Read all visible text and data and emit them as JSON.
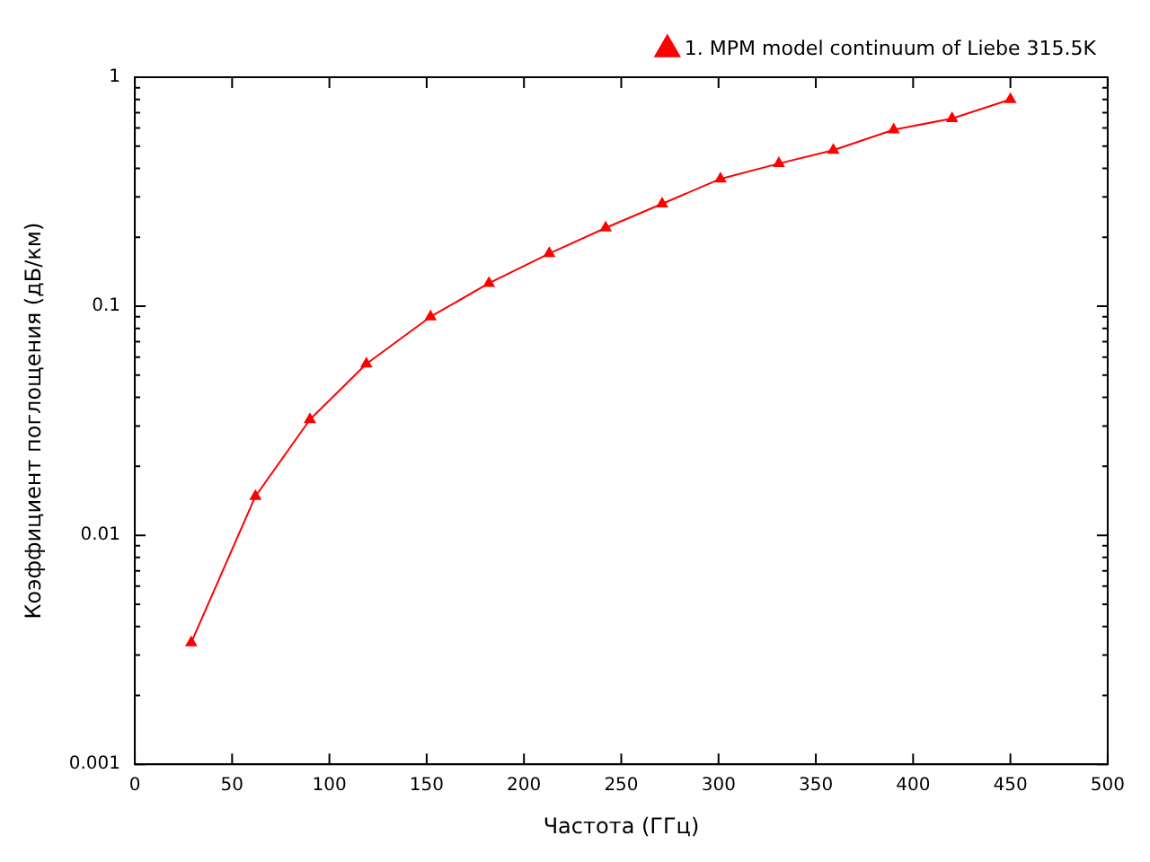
{
  "chart_data": {
    "type": "line",
    "xlabel": "Частота (ГГц)",
    "ylabel": "Коэффициент поглощения (дБ/км)",
    "x": [
      29,
      62,
      90,
      119,
      152,
      182,
      213,
      242,
      271,
      301,
      331,
      359,
      390,
      420,
      450
    ],
    "series": [
      {
        "name": "1. MPM model continuum of Liebe 315.5K",
        "color": "#ff0000",
        "values": [
          0.0034,
          0.0148,
          0.032,
          0.056,
          0.09,
          0.126,
          0.17,
          0.22,
          0.28,
          0.36,
          0.42,
          0.48,
          0.59,
          0.66,
          0.8
        ]
      }
    ],
    "xlim": [
      0,
      500
    ],
    "xticks": [
      0,
      50,
      100,
      150,
      200,
      250,
      300,
      350,
      400,
      450,
      500
    ],
    "ylim": [
      0.001,
      1
    ],
    "yticks": [
      0.001,
      0.01,
      0.1,
      1
    ],
    "log": "y",
    "grid": false,
    "legend": "top right",
    "marker": "triangle",
    "line_style": "solid"
  }
}
